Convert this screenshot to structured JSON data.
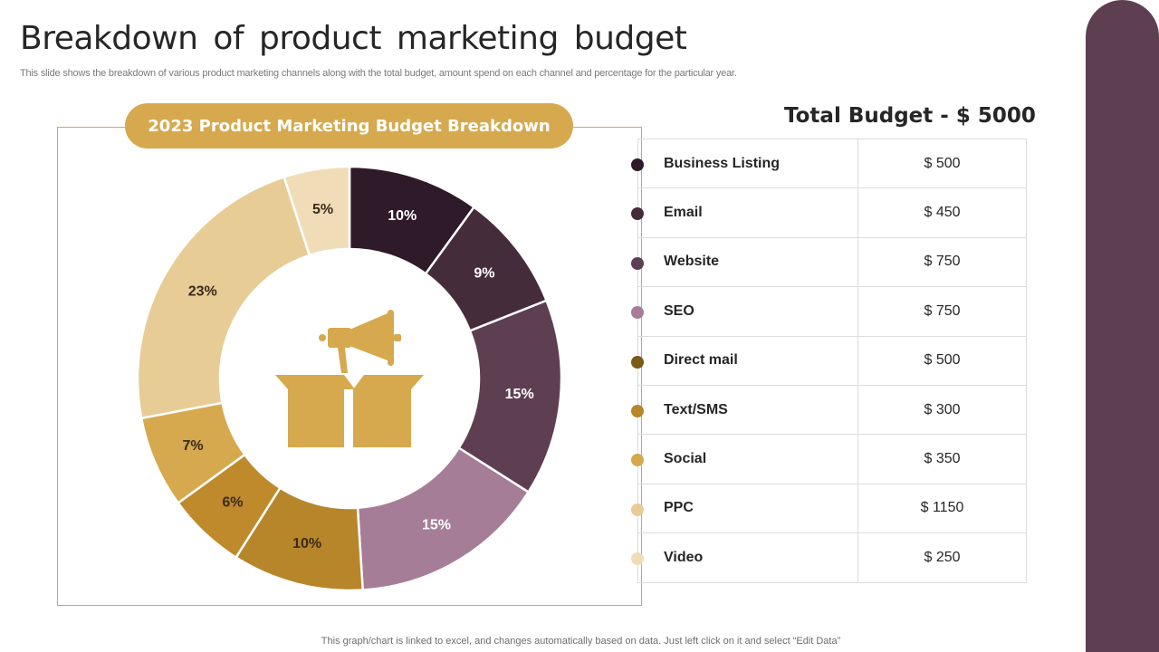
{
  "slide": {
    "title": "Breakdown  of  product  marketing  budget",
    "subtitle": "This slide shows the breakdown of various product marketing channels along with the total budget, amount spend on each channel and percentage for the particular year.",
    "footer": "This graph/chart is linked to excel,  and changes automatically based on data. Just left click on it and select “Edit Data”",
    "total_budget": "Total Budget - $ 5000"
  },
  "colors": {
    "accent": "#d6a94e",
    "side_bar": "#5e3f51",
    "center_icon": "#d6a94e"
  },
  "chart_data": {
    "type": "pie",
    "variant": "donut",
    "title": "2023 Product Marketing Budget Breakdown",
    "center_icon": "megaphone-box-icon",
    "slices": [
      {
        "label": "Business Listing",
        "value": 10,
        "display": "10%",
        "color": "#2e1a28",
        "text_color": "#ffffff"
      },
      {
        "label": "Email",
        "value": 9,
        "display": "9%",
        "color": "#452c3b",
        "text_color": "#ffffff"
      },
      {
        "label": "Website",
        "value": 15,
        "display": "15%",
        "color": "#5e3f51",
        "text_color": "#ffffff"
      },
      {
        "label": "SEO",
        "value": 15,
        "display": "15%",
        "color": "#a67d96",
        "text_color": "#ffffff"
      },
      {
        "label": "Direct mail",
        "value": 10,
        "display": "10%",
        "color": "#b7862a",
        "text_color": "#3a2a1a"
      },
      {
        "label": "Text/SMS",
        "value": 6,
        "display": "6%",
        "color": "#bf8a2c",
        "text_color": "#3a2a1a"
      },
      {
        "label": "Social",
        "value": 7,
        "display": "7%",
        "color": "#d6a94e",
        "text_color": "#3a2a1a"
      },
      {
        "label": "PPC",
        "value": 23,
        "display": "23%",
        "color": "#e8cc96",
        "text_color": "#3a2a1a"
      },
      {
        "label": "Video",
        "value": 5,
        "display": "5%",
        "color": "#f0ddb8",
        "text_color": "#3a2a1a"
      }
    ]
  },
  "table": {
    "rows": [
      {
        "channel": "Business Listing",
        "amount": "$ 500",
        "dot_color": "#2e1a28"
      },
      {
        "channel": "Email",
        "amount": "$ 450",
        "dot_color": "#452c3b"
      },
      {
        "channel": "Website",
        "amount": "$ 750",
        "dot_color": "#5e3f51"
      },
      {
        "channel": "SEO",
        "amount": "$ 750",
        "dot_color": "#a67d96"
      },
      {
        "channel": "Direct mail",
        "amount": "$ 500",
        "dot_color": "#7a5a14"
      },
      {
        "channel": "Text/SMS",
        "amount": "$ 300",
        "dot_color": "#b7862a"
      },
      {
        "channel": "Social",
        "amount": "$ 350",
        "dot_color": "#d6a94e"
      },
      {
        "channel": "PPC",
        "amount": "$ 1150",
        "dot_color": "#e8cc96"
      },
      {
        "channel": "Video",
        "amount": "$ 250",
        "dot_color": "#f0ddb8"
      }
    ]
  }
}
